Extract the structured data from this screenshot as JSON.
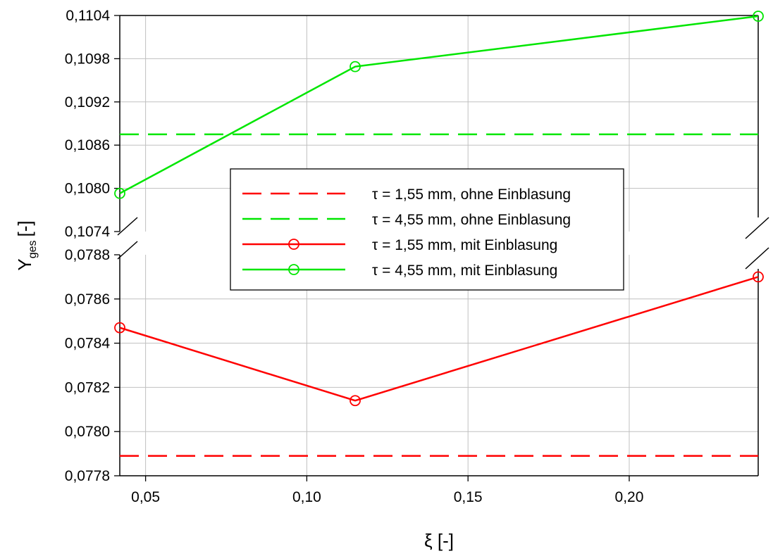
{
  "chart_data": {
    "type": "line",
    "xlabel": "ξ [-]",
    "ylabel": "Y",
    "ylabel_subscript": "ges",
    "ylabel_unit": "[-]",
    "xlim": [
      0.042,
      0.24
    ],
    "xticks": [
      0.05,
      0.1,
      0.15,
      0.2
    ],
    "xtick_labels": [
      "0,05",
      "0,10",
      "0,15",
      "0,20"
    ],
    "y_axis_break": true,
    "upper_ylim": [
      0.1074,
      0.1104
    ],
    "upper_yticks": [
      0.1074,
      0.108,
      0.1086,
      0.1092,
      0.1098,
      0.1104
    ],
    "upper_ytick_labels": [
      "0,1074",
      "0,1080",
      "0,1086",
      "0,1092",
      "0,1098",
      "0,1104"
    ],
    "lower_ylim": [
      0.0778,
      0.0788
    ],
    "lower_yticks": [
      0.0778,
      0.078,
      0.0782,
      0.0784,
      0.0786,
      0.0788
    ],
    "lower_ytick_labels": [
      "0,0778",
      "0,0780",
      "0,0782",
      "0,0784",
      "0,0786",
      "0,0788"
    ],
    "grid": true,
    "legend_position": "center-right",
    "series": [
      {
        "name": "τ = 1,55 mm, ohne Einblasung",
        "color": "#ff0000",
        "style": "dashed",
        "marker": "none",
        "panel": "lower",
        "x": [
          0.042,
          0.24
        ],
        "values": [
          0.07789,
          0.07789
        ]
      },
      {
        "name": "τ = 4,55 mm, ohne Einblasung",
        "color": "#00e600",
        "style": "dashed",
        "marker": "none",
        "panel": "upper",
        "x": [
          0.042,
          0.24
        ],
        "values": [
          0.10875,
          0.10875
        ]
      },
      {
        "name": "τ = 1,55 mm, mit Einblasung",
        "color": "#ff0000",
        "style": "solid",
        "marker": "circle",
        "panel": "lower",
        "x": [
          0.042,
          0.115,
          0.24
        ],
        "values": [
          0.07847,
          0.07814,
          0.0787
        ]
      },
      {
        "name": "τ = 4,55 mm, mit Einblasung",
        "color": "#00e600",
        "style": "solid",
        "marker": "circle",
        "panel": "upper",
        "x": [
          0.042,
          0.115,
          0.24
        ],
        "values": [
          0.10793,
          0.10969,
          0.11039
        ]
      }
    ]
  }
}
